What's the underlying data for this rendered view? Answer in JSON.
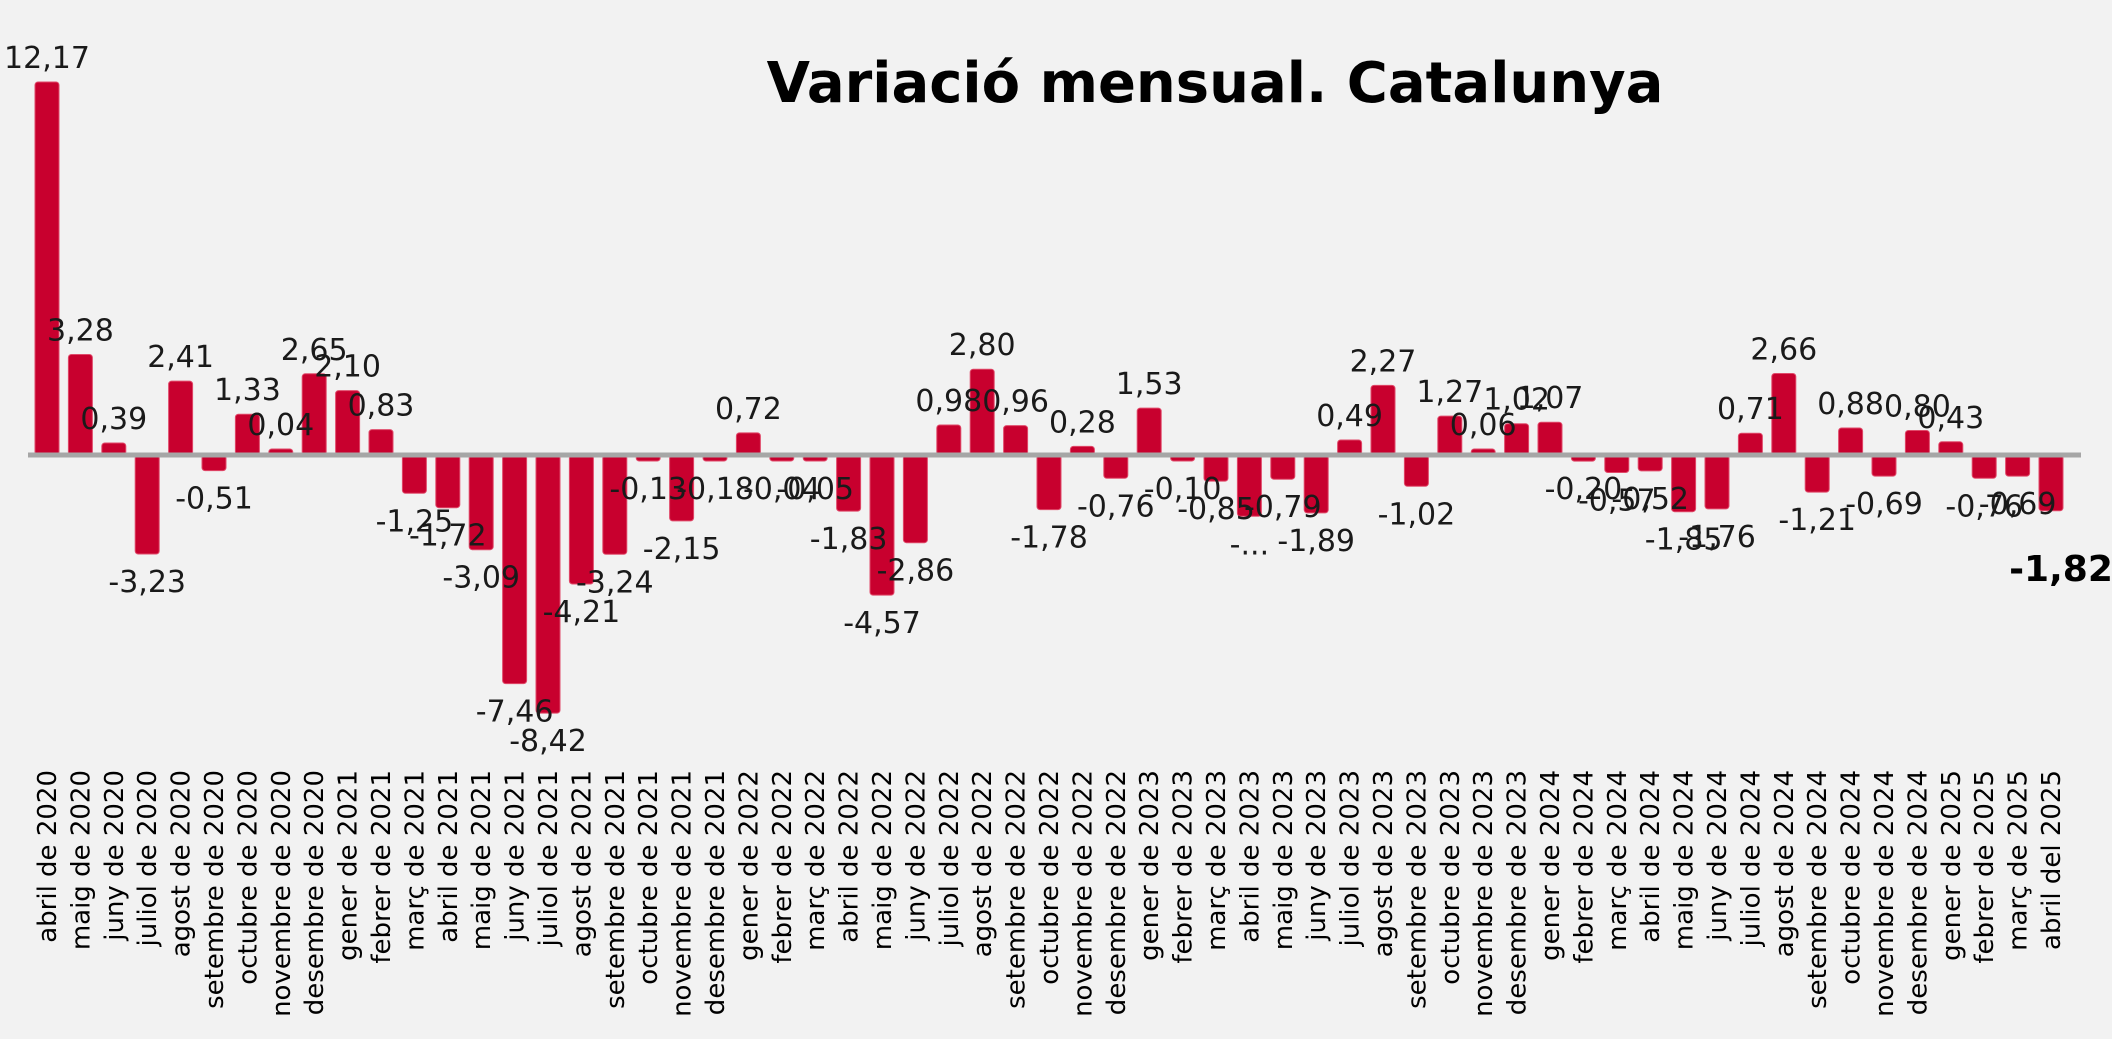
{
  "chart_data": {
    "type": "bar",
    "title": "Variació mensual. Catalunya",
    "xlabel": "",
    "ylabel": "",
    "ylim": [
      -9.5,
      13
    ],
    "grid": false,
    "legend": "none",
    "bar_color": "#c8002e",
    "categories": [
      "abril de 2020",
      "maig de 2020",
      "juny de 2020",
      "juliol de 2020",
      "agost de 2020",
      "setembre de 2020",
      "octubre de 2020",
      "novembre de 2020",
      "desembre de 2020",
      "gener de 2021",
      "febrer de 2021",
      "març de 2021",
      "abril de 2021",
      "maig de 2021",
      "juny de 2021",
      "juliol de 2021",
      "agost de 2021",
      "setembre de 2021",
      "octubre de 2021",
      "novembre de 2021",
      "desembre de 2021",
      "gener de 2022",
      "febrer de 2022",
      "març de 2022",
      "abril de 2022",
      "maig de 2022",
      "juny de 2022",
      "juliol de 2022",
      "agost de 2022",
      "setembre de 2022",
      "octubre de 2022",
      "novembre de 2022",
      "desembre de 2022",
      "gener de 2023",
      "febrer de 2023",
      "març de 2023",
      "abril de 2023",
      "maig de 2023",
      "juny de 2023",
      "juliol de 2023",
      "agost de 2023",
      "setembre de 2023",
      "octubre de 2023",
      "novembre de 2023",
      "desembre de 2023",
      "gener de 2024",
      "febrer de 2024",
      "març de 2024",
      "abril de 2024",
      "maig de 2024",
      "juny de 2024",
      "juliol de 2024",
      "agost de 2024",
      "setembre de 2024",
      "octubre de 2024",
      "novembre de 2024",
      "desembre de 2024",
      "gener de 2025",
      "febrer de 2025",
      "març de 2025",
      "abril del 2025"
    ],
    "values": [
      12.17,
      3.28,
      0.39,
      -3.23,
      2.41,
      -0.51,
      1.33,
      0.04,
      2.65,
      2.1,
      0.83,
      -1.25,
      -1.72,
      -3.09,
      -7.46,
      -8.42,
      -4.21,
      -3.24,
      -0.13,
      -2.15,
      -0.18,
      0.72,
      -0.04,
      -0.05,
      -1.83,
      -4.57,
      -2.86,
      0.98,
      2.8,
      0.96,
      -1.78,
      0.28,
      -0.76,
      1.53,
      -0.1,
      -0.85,
      -2.0,
      -0.79,
      -1.89,
      0.49,
      2.27,
      -1.02,
      1.27,
      0.06,
      1.02,
      1.07,
      -0.2,
      -0.57,
      -0.52,
      -1.85,
      -1.76,
      0.71,
      2.66,
      -1.21,
      0.88,
      -0.69,
      0.8,
      0.43,
      -0.76,
      -0.69,
      -1.82
    ],
    "data_labels": [
      "12,17",
      "3,28",
      "0,39",
      "-3,23",
      "2,41",
      "-0,51",
      "1,33",
      "0,04",
      "2,65",
      "2,10",
      "0,83",
      "-1,25",
      "-1,72",
      "-3,09",
      "-7,46",
      "-8,42",
      "-4,21",
      "-3,24",
      "-0,13",
      "-2,15",
      "-0,18",
      "0,72",
      "-0,04",
      "-0,05",
      "-1,83",
      "-4,57",
      "-2,86",
      "0,98",
      "2,80",
      "0,96",
      "-1,78",
      "0,28",
      "-0,76",
      "1,53",
      "-0,10",
      "-0,85",
      "-...",
      "-0,79",
      "-1,89",
      "0,49",
      "2,27",
      "-1,02",
      "1,27",
      "0,06",
      "1,02",
      "1,07",
      "-0,20",
      "-0,57",
      "-0,52",
      "-1,85",
      "-1,76",
      "0,71",
      "2,66",
      "-1,21",
      "0,88",
      "-0,69",
      "0,80",
      "0,43",
      "-0,76",
      "-0,69",
      "-1,82"
    ],
    "highlighted_label_index": 60
  }
}
